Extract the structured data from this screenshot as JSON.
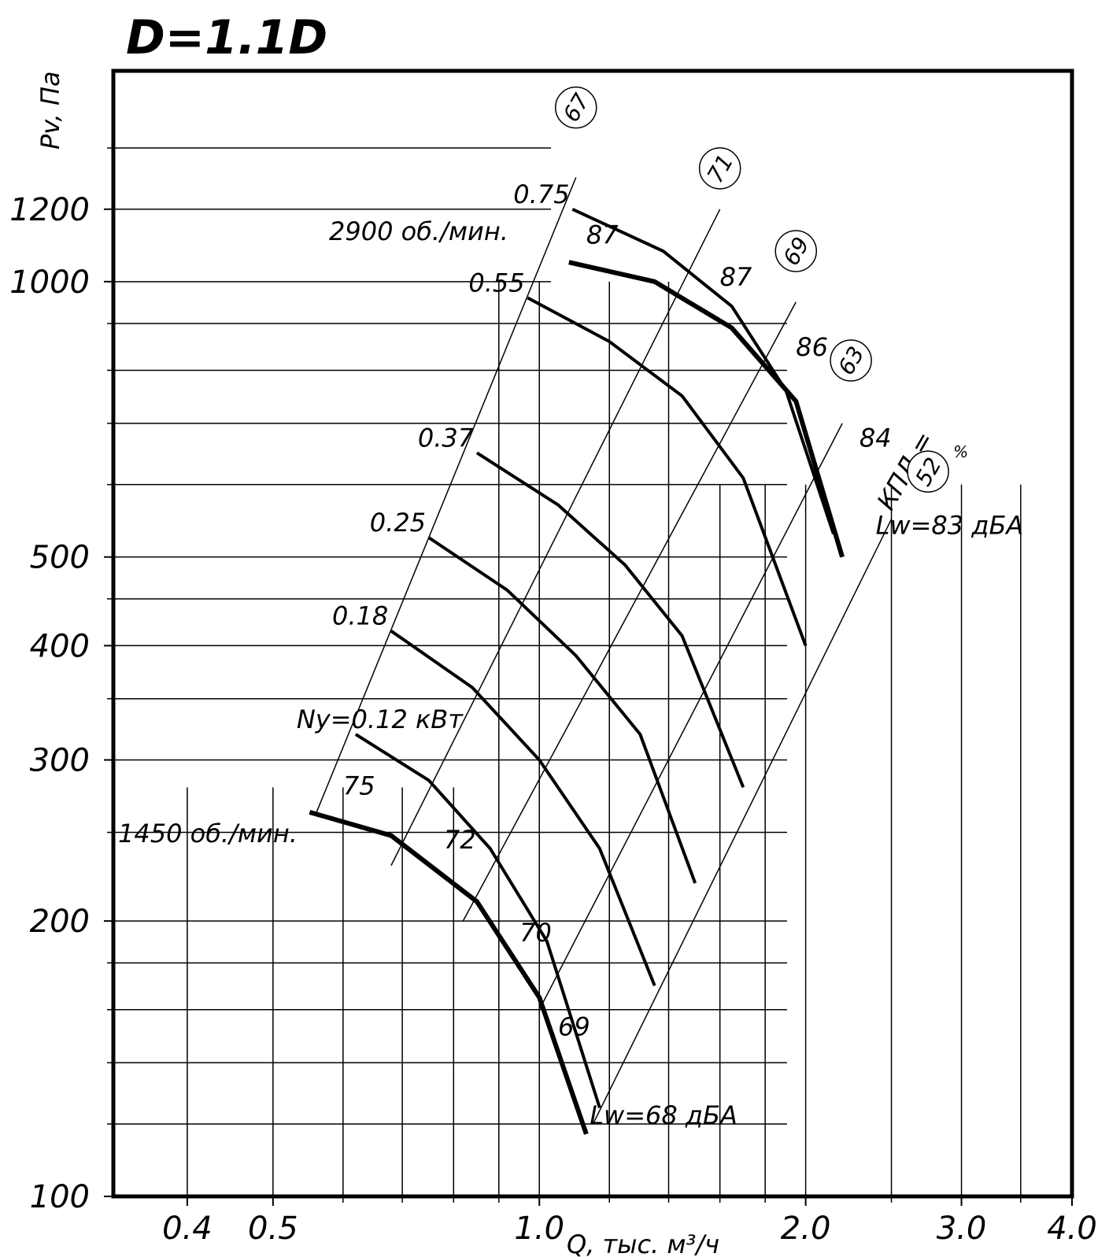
{
  "chart_data": {
    "type": "line",
    "title": "D=1.1D",
    "xlabel": "Q, тыс. м³/ч",
    "ylabel": "Pv, Па",
    "xscale": "log",
    "yscale": "log",
    "xlim": [
      0.33,
      4.0
    ],
    "ylim": [
      100,
      1700
    ],
    "x_ticks": [
      0.4,
      0.5,
      1.0,
      2.0,
      3.0,
      4.0
    ],
    "x_tick_labels": [
      "0.4",
      "0.5",
      "1.0",
      "2.0",
      "3.0",
      "4.0"
    ],
    "x_minor_ticks": [
      0.6,
      0.7,
      0.8,
      0.9,
      1.2,
      1.4,
      1.6,
      1.8,
      2.5,
      3.5
    ],
    "y_ticks": [
      100,
      200,
      300,
      400,
      500,
      1000,
      1200
    ],
    "y_tick_labels": [
      "100",
      "200",
      "300",
      "400",
      "500",
      "1000",
      "1200"
    ],
    "y_minor_ticks": [
      120,
      140,
      160,
      180,
      250,
      350,
      450,
      600,
      700,
      800,
      900,
      1400
    ],
    "grid": true,
    "speed_labels": [
      "2900 об./мин.",
      "1450 об./мин."
    ],
    "series": [
      {
        "name": "0.75",
        "kind": "power",
        "x": [
          1.09,
          1.38,
          1.65,
          1.9,
          2.15
        ],
        "y": [
          1200,
          1080,
          940,
          760,
          530
        ]
      },
      {
        "name": "0.55",
        "kind": "power",
        "x": [
          0.97,
          1.2,
          1.45,
          1.7,
          2.0
        ],
        "y": [
          960,
          860,
          750,
          610,
          400
        ]
      },
      {
        "name": "0.37",
        "kind": "power",
        "x": [
          0.85,
          1.05,
          1.25,
          1.45,
          1.7
        ],
        "y": [
          650,
          570,
          490,
          410,
          280
        ]
      },
      {
        "name": "0.25",
        "kind": "power",
        "x": [
          0.75,
          0.92,
          1.1,
          1.3,
          1.5
        ],
        "y": [
          525,
          460,
          390,
          320,
          220
        ]
      },
      {
        "name": "0.18",
        "kind": "power",
        "x": [
          0.68,
          0.84,
          1.0,
          1.17,
          1.35
        ],
        "y": [
          415,
          360,
          300,
          240,
          170
        ]
      },
      {
        "name": "Ny=0.12 кВт",
        "kind": "power",
        "x": [
          0.62,
          0.75,
          0.88,
          1.02,
          1.17
        ],
        "y": [
          320,
          285,
          240,
          190,
          125
        ]
      },
      {
        "name": "",
        "kind": "speed",
        "speed": "2900 об./мин.",
        "x": [
          1.08,
          1.35,
          1.65,
          1.95,
          2.2
        ],
        "y": [
          1050,
          1000,
          890,
          740,
          500
        ]
      },
      {
        "name": "",
        "kind": "speed",
        "speed": "1450 об./мин.",
        "x": [
          0.55,
          0.68,
          0.85,
          1.0,
          1.13
        ],
        "y": [
          263,
          248,
          210,
          165,
          117
        ]
      }
    ],
    "annotations": [
      {
        "text": "87",
        "x": 1.13,
        "y": 1100
      },
      {
        "text": "87",
        "x": 1.6,
        "y": 990
      },
      {
        "text": "86",
        "x": 1.95,
        "y": 830
      },
      {
        "text": "84",
        "x": 2.3,
        "y": 660
      },
      {
        "text": "75",
        "x": 0.6,
        "y": 275
      },
      {
        "text": "72",
        "x": 0.78,
        "y": 240
      },
      {
        "text": "70",
        "x": 0.95,
        "y": 190
      },
      {
        "text": "69",
        "x": 1.05,
        "y": 150
      },
      {
        "text": "Lw=83 дБА",
        "x": 2.4,
        "y": 530
      },
      {
        "text": "Lw=68 дБА",
        "x": 1.14,
        "y": 120
      }
    ],
    "efficiency_label": "КПД =",
    "efficiency_unit": "%",
    "efficiency_circles": [
      "67",
      "71",
      "69",
      "63",
      "52"
    ]
  }
}
